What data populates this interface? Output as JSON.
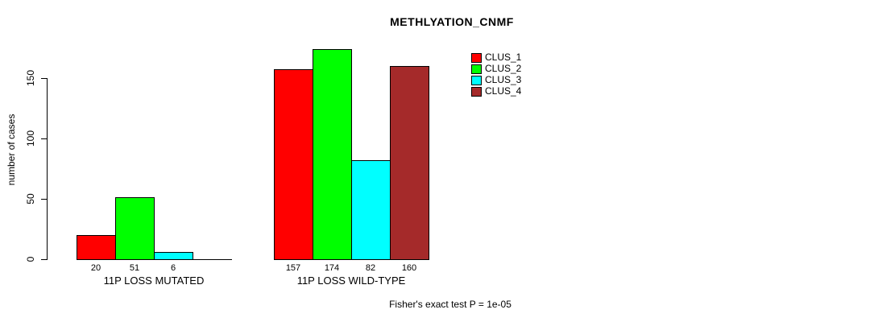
{
  "chart_data": {
    "type": "bar",
    "title": "METHLYATION_CNMF",
    "xlabel": "",
    "ylabel": "number of cases",
    "ylim": [
      0,
      150
    ],
    "yticks": [
      0,
      50,
      100,
      150
    ],
    "grid": false,
    "legend_position": "top-right",
    "series": [
      "CLUS_1",
      "CLUS_2",
      "CLUS_3",
      "CLUS_4"
    ],
    "series_colors": [
      "#FF0000",
      "#00FF00",
      "#00FFFF",
      "#A52A2A"
    ],
    "groups": [
      {
        "label": "11P LOSS MUTATED",
        "values": [
          20,
          51,
          6,
          0
        ],
        "value_labels": [
          "20",
          "51",
          "6",
          ""
        ]
      },
      {
        "label": "11P LOSS WILD-TYPE",
        "values": [
          157,
          174,
          82,
          160
        ],
        "value_labels": [
          "157",
          "174",
          "82",
          "160"
        ]
      }
    ],
    "annotation": "Fisher's exact test P = 1e-05"
  },
  "colors": {
    "background": "#FFFFFF",
    "axis": "#000000",
    "text": "#000000"
  }
}
